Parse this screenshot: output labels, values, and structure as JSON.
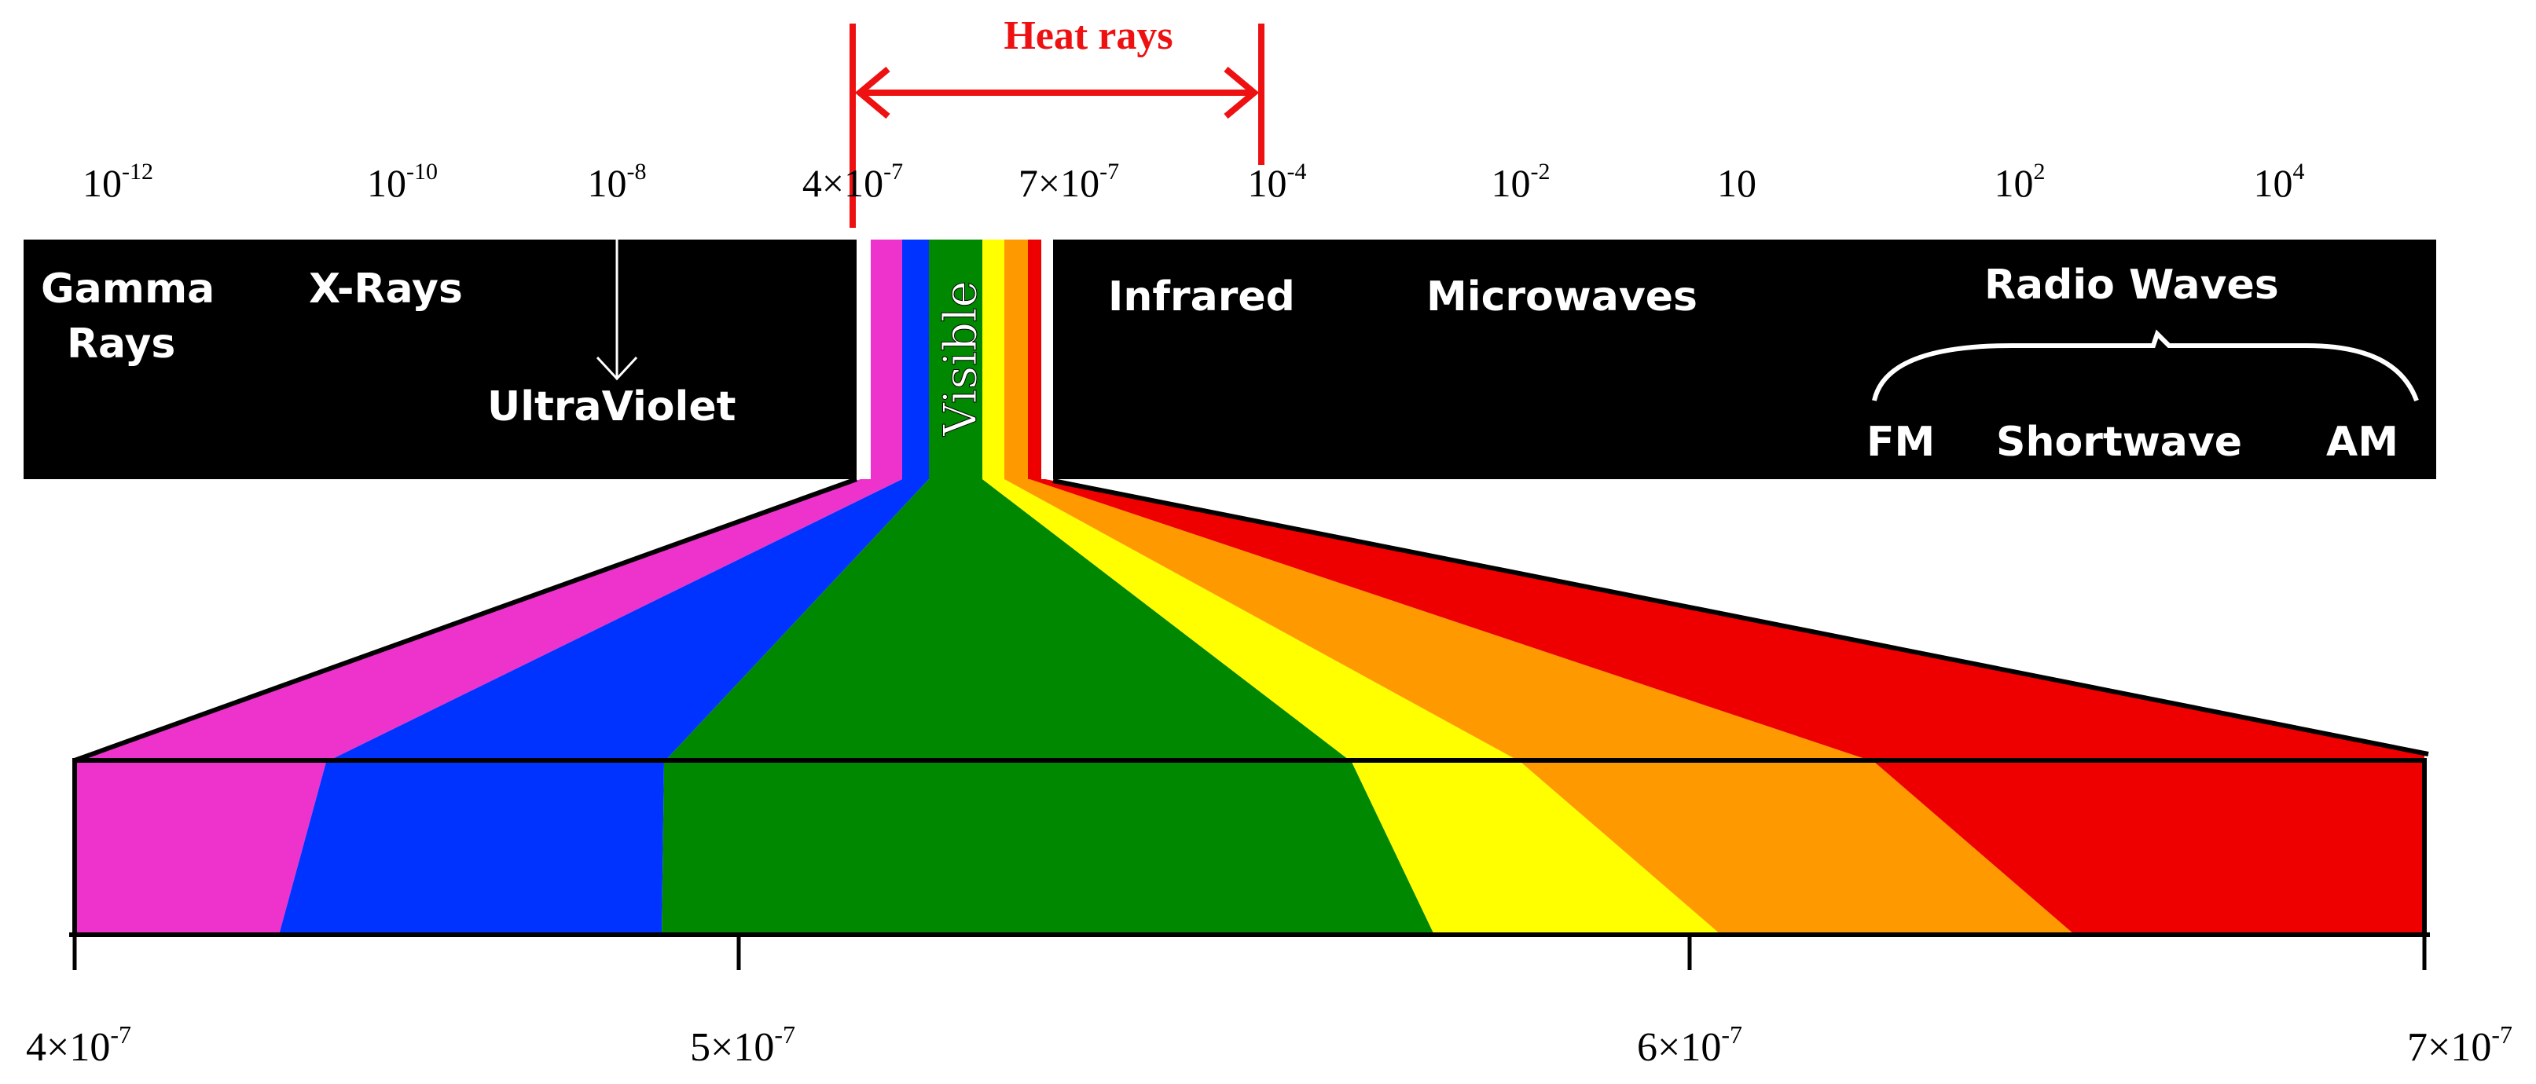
{
  "heat_rays": {
    "label": "Heat rays"
  },
  "top_ticks": [
    {
      "base": "10",
      "exp": "-12"
    },
    {
      "base": "10",
      "exp": "-10"
    },
    {
      "base": "10",
      "exp": "-8"
    },
    {
      "base": "4×10",
      "exp": "-7"
    },
    {
      "base": "7×10",
      "exp": "-7"
    },
    {
      "base": "10",
      "exp": "-4"
    },
    {
      "base": "10",
      "exp": "-2"
    },
    {
      "base": "10",
      "exp": ""
    },
    {
      "base": "10",
      "exp": "2"
    },
    {
      "base": "10",
      "exp": "4"
    }
  ],
  "regions": {
    "gamma_line1": "Gamma",
    "gamma_line2": "Rays",
    "xrays": "X-Rays",
    "ultraviolet": "UltraViolet",
    "visible": "Visible",
    "infrared": "Infrared",
    "microwaves": "Microwaves",
    "radio_waves": "Radio Waves",
    "fm": "FM",
    "shortwave": "Shortwave",
    "am": "AM"
  },
  "bottom_axis": {
    "ticks": [
      {
        "base": "4×10",
        "exp": "-7"
      },
      {
        "base": "5×10",
        "exp": "-7"
      },
      {
        "base": "6×10",
        "exp": "-7"
      },
      {
        "base": "7×10",
        "exp": "-7"
      }
    ]
  },
  "colors": {
    "band": "#000000",
    "heat": "#ee1111",
    "violet": "#ee33cc",
    "blue": "#0033ff",
    "green": "#008800",
    "yellow": "#ffff00",
    "orange": "#ff9900",
    "red": "#ee0000"
  }
}
